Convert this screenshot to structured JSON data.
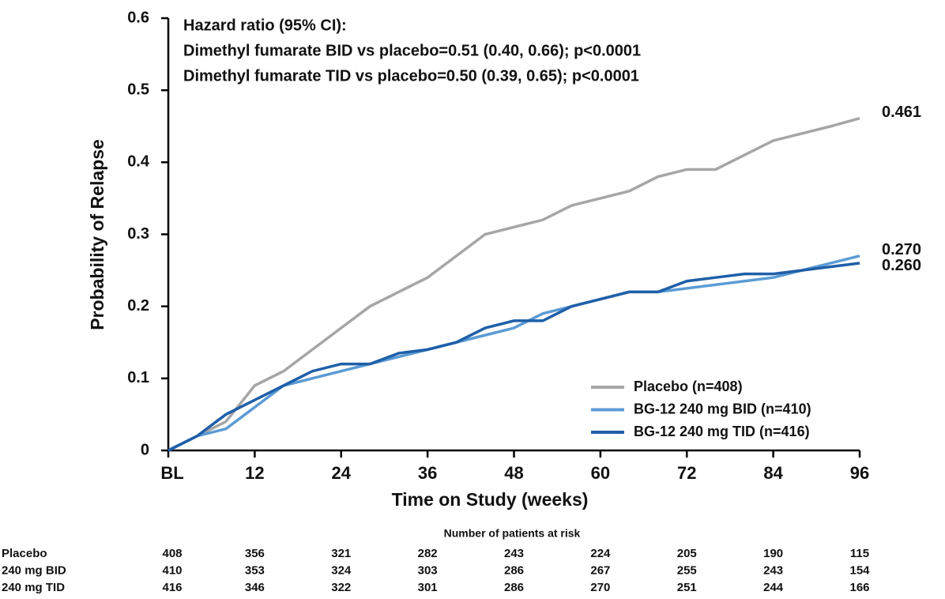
{
  "chart_data": {
    "type": "line",
    "annotations": [
      "Hazard ratio (95% CI):",
      "Dimethyl fumarate BID vs placebo=0.51 (0.40, 0.66); p<0.0001",
      "Dimethyl fumarate TID vs placebo=0.50 (0.39, 0.65); p<0.0001"
    ],
    "x_label": "Time on Study (weeks)",
    "y_label": "Probability of Relapse",
    "x": [
      0,
      4,
      8,
      12,
      16,
      20,
      24,
      28,
      32,
      36,
      40,
      44,
      48,
      52,
      56,
      60,
      64,
      68,
      72,
      76,
      80,
      84,
      88,
      92,
      96
    ],
    "series": [
      {
        "name": "Placebo (n=408)",
        "color": "#a6a6a6",
        "values": [
          0,
          0.02,
          0.04,
          0.09,
          0.11,
          0.14,
          0.17,
          0.2,
          0.22,
          0.24,
          0.27,
          0.3,
          0.31,
          0.32,
          0.34,
          0.35,
          0.36,
          0.38,
          0.39,
          0.39,
          0.41,
          0.43,
          0.44,
          0.45,
          0.461
        ],
        "value_labels": [
          null,
          null,
          null,
          null,
          null,
          null,
          null,
          null,
          null,
          null,
          null,
          null,
          null,
          null,
          null,
          null,
          null,
          null,
          null,
          null,
          null,
          null,
          null,
          null,
          "0.461"
        ]
      },
      {
        "name": "BG-12 240 mg BID (n=410)",
        "color": "#5b9bd5",
        "values": [
          0,
          0.02,
          0.03,
          0.06,
          0.09,
          0.1,
          0.11,
          0.12,
          0.13,
          0.14,
          0.15,
          0.16,
          0.17,
          0.19,
          0.2,
          0.21,
          0.22,
          0.22,
          0.225,
          0.23,
          0.235,
          0.24,
          0.25,
          0.26,
          0.27
        ],
        "value_labels": [
          null,
          null,
          null,
          null,
          null,
          null,
          null,
          null,
          null,
          null,
          null,
          null,
          null,
          null,
          null,
          null,
          null,
          null,
          null,
          null,
          null,
          null,
          null,
          null,
          "0.270"
        ]
      },
      {
        "name": "BG-12 240 mg TID (n=416)",
        "color": "#1f5fa8",
        "values": [
          0,
          0.02,
          0.05,
          0.07,
          0.09,
          0.11,
          0.12,
          0.12,
          0.135,
          0.14,
          0.15,
          0.17,
          0.18,
          0.18,
          0.2,
          0.21,
          0.22,
          0.22,
          0.235,
          0.24,
          0.245,
          0.245,
          0.25,
          0.255,
          0.26
        ],
        "value_labels": [
          null,
          null,
          null,
          null,
          null,
          null,
          null,
          null,
          null,
          null,
          null,
          null,
          null,
          null,
          null,
          null,
          null,
          null,
          null,
          null,
          null,
          null,
          null,
          null,
          "0.260"
        ]
      }
    ],
    "xlim": [
      0,
      96
    ],
    "xticks": [
      {
        "value": 0,
        "label": "BL"
      },
      12,
      24,
      36,
      48,
      60,
      72,
      84,
      96
    ],
    "ylim": [
      0,
      0.6
    ],
    "yticks": [
      0,
      0.1,
      0.2,
      0.3,
      0.4,
      0.5,
      0.6
    ],
    "legend": "lower right",
    "risk_table": {
      "title": "Number of patients at risk",
      "rows": [
        {
          "name": "Placebo",
          "values": [
            408,
            356,
            321,
            282,
            243,
            224,
            205,
            190,
            115
          ]
        },
        {
          "name": "240 mg BID",
          "values": [
            410,
            353,
            324,
            303,
            286,
            267,
            255,
            243,
            154
          ]
        },
        {
          "name": "240 mg TID",
          "values": [
            416,
            346,
            322,
            301,
            286,
            270,
            251,
            244,
            166
          ]
        }
      ]
    }
  }
}
